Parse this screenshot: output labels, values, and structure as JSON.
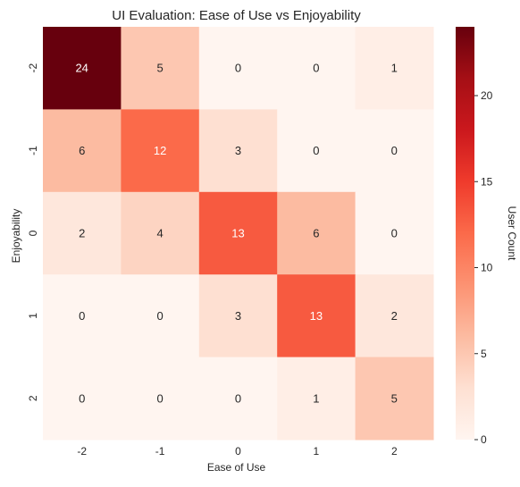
{
  "chart_data": {
    "type": "heatmap",
    "title": "UI Evaluation: Ease of Use vs Enjoyability",
    "xlabel": "Ease of Use",
    "ylabel": "Enjoyability",
    "x_categories": [
      "-2",
      "-1",
      "0",
      "1",
      "2"
    ],
    "y_categories": [
      "-2",
      "-1",
      "0",
      "1",
      "2"
    ],
    "values": [
      [
        24,
        5,
        0,
        0,
        1
      ],
      [
        6,
        12,
        3,
        0,
        0
      ],
      [
        2,
        4,
        13,
        6,
        0
      ],
      [
        0,
        0,
        3,
        13,
        2
      ],
      [
        0,
        0,
        0,
        1,
        5
      ]
    ],
    "colorbar": {
      "label": "User Count",
      "vmin": 0,
      "vmax": 24,
      "ticks": [
        0,
        5,
        10,
        15,
        20
      ]
    },
    "colormap": "Reds",
    "grid": false
  }
}
